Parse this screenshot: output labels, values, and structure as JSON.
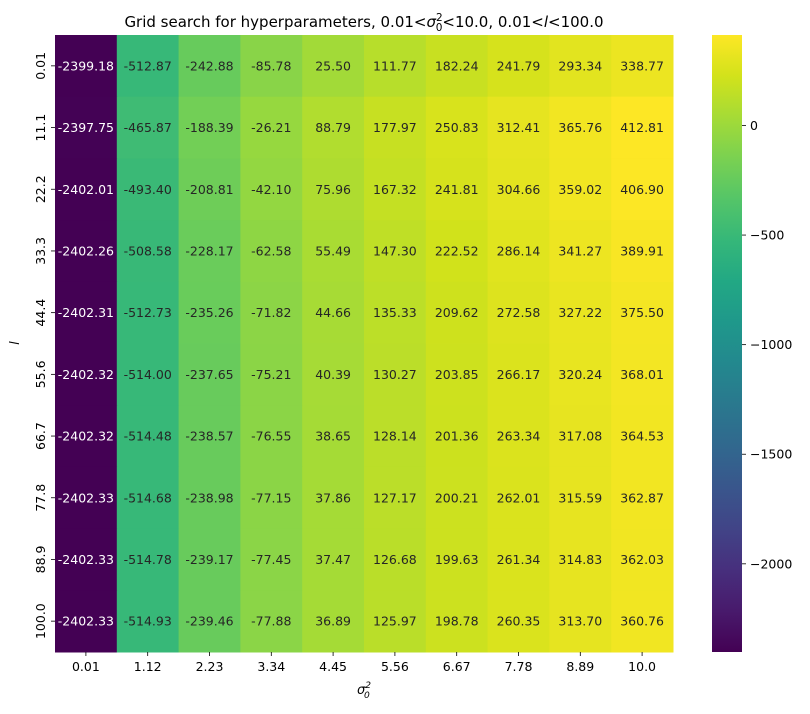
{
  "chart_data": {
    "type": "heatmap",
    "title": "Grid search for hyperparameters, 0.01<σ₀²<10.0, 0.01<l<100.0",
    "xlabel": "σ₀²",
    "ylabel": "l",
    "x_ticks": [
      "0.01",
      "1.12",
      "2.23",
      "3.34",
      "4.45",
      "5.56",
      "6.67",
      "7.78",
      "8.89",
      "10.0"
    ],
    "y_ticks": [
      "0.01",
      "11.1",
      "22.2",
      "33.3",
      "44.4",
      "55.6",
      "66.7",
      "77.8",
      "88.9",
      "100.0"
    ],
    "values": [
      [
        -2399.18,
        -512.87,
        -242.88,
        -85.78,
        25.5,
        111.77,
        182.24,
        241.79,
        293.34,
        338.77
      ],
      [
        -2397.75,
        -465.87,
        -188.39,
        -26.21,
        88.79,
        177.97,
        250.83,
        312.41,
        365.76,
        412.81
      ],
      [
        -2402.01,
        -493.4,
        -208.81,
        -42.1,
        75.96,
        167.32,
        241.81,
        304.66,
        359.02,
        406.9
      ],
      [
        -2402.26,
        -508.58,
        -228.17,
        -62.58,
        55.49,
        147.3,
        222.52,
        286.14,
        341.27,
        389.91
      ],
      [
        -2402.31,
        -512.73,
        -235.26,
        -71.82,
        44.66,
        135.33,
        209.62,
        272.58,
        327.22,
        375.5
      ],
      [
        -2402.32,
        -514.0,
        -237.65,
        -75.21,
        40.39,
        130.27,
        203.85,
        266.17,
        320.24,
        368.01
      ],
      [
        -2402.32,
        -514.48,
        -238.57,
        -76.55,
        38.65,
        128.14,
        201.36,
        263.34,
        317.08,
        364.53
      ],
      [
        -2402.33,
        -514.68,
        -238.98,
        -77.15,
        37.86,
        127.17,
        200.21,
        262.01,
        315.59,
        362.87
      ],
      [
        -2402.33,
        -514.78,
        -239.17,
        -77.45,
        37.47,
        126.68,
        199.63,
        261.34,
        314.83,
        362.03
      ],
      [
        -2402.33,
        -514.93,
        -239.46,
        -77.88,
        36.89,
        125.97,
        198.78,
        260.35,
        313.7,
        360.76
      ]
    ],
    "colormap": "viridis",
    "vmin": -2402.33,
    "vmax": 412.81,
    "colorbar_ticks": [
      0,
      -500,
      -1000,
      -1500,
      -2000
    ],
    "colorbar_tick_labels": [
      "0",
      "−500",
      "−1000",
      "−1500",
      "−2000"
    ]
  }
}
